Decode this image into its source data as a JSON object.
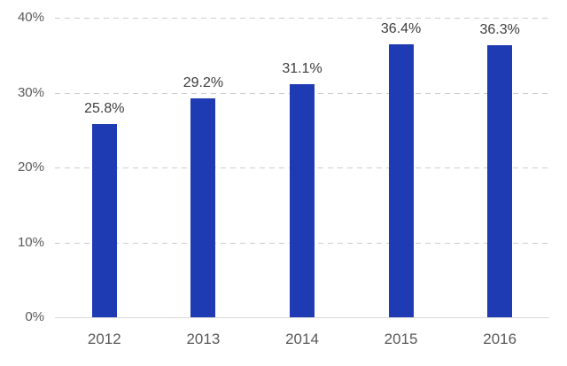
{
  "chart_data": {
    "type": "bar",
    "title": "",
    "xlabel": "",
    "ylabel": "",
    "categories": [
      "2012",
      "2013",
      "2014",
      "2015",
      "2016"
    ],
    "values": [
      25.8,
      29.2,
      31.1,
      36.4,
      36.3
    ],
    "value_labels": [
      "25.8%",
      "29.2%",
      "31.1%",
      "36.4%",
      "36.3%"
    ],
    "y_ticks": [
      {
        "value": 0,
        "label": "0%"
      },
      {
        "value": 10,
        "label": "10%"
      },
      {
        "value": 20,
        "label": "20%"
      },
      {
        "value": 30,
        "label": "30%"
      },
      {
        "value": 40,
        "label": "40%"
      }
    ],
    "ylim": [
      0,
      40
    ],
    "grid": "horizontal-dashed",
    "legend": "none",
    "colors": {
      "bar": "#1f3bb3",
      "axis_tick_label": "#595959",
      "value_label": "#3d3d3d",
      "gridline": "#cccccc",
      "axis_line": "#d9d9d9",
      "background": "#ffffff"
    }
  }
}
